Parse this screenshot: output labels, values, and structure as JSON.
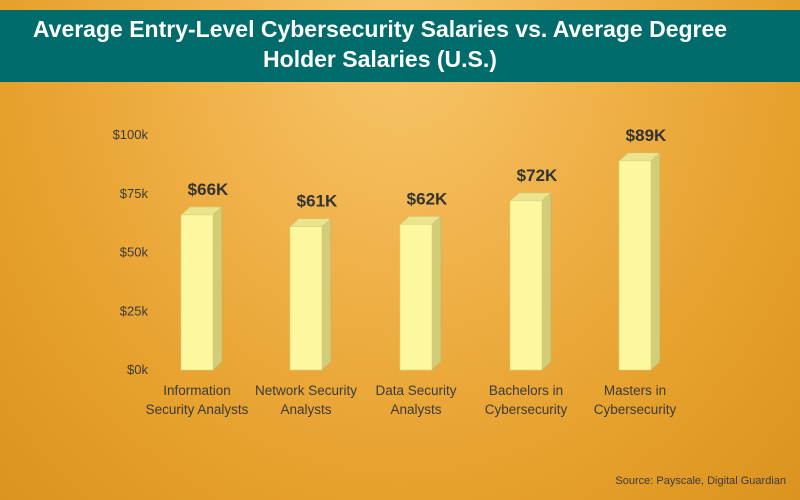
{
  "header": {
    "title": "Average Entry-Level Cybersecurity Salaries vs. Average Degree\nHolder Salaries (U.S.)"
  },
  "footer": {
    "source": "Source: Payscale, Digital Guardian"
  },
  "colors": {
    "title_bar": "#006b6b",
    "bar_front": "#fdf8a0",
    "bar_side": "#d4cd78",
    "bar_top": "#ebe48c",
    "label_text": "#3a3a3a",
    "value_text": "#333333"
  },
  "chart_data": {
    "type": "bar",
    "title": "Average Entry-Level Cybersecurity Salaries vs. Average Degree Holder Salaries (U.S.)",
    "categories": [
      [
        "Information",
        "Security Analysts"
      ],
      [
        "Network Security",
        "Analysts"
      ],
      [
        "Data Security",
        "Analysts"
      ],
      [
        "Bachelors in",
        "Cybersecurity"
      ],
      [
        "Masters in",
        "Cybersecurity"
      ]
    ],
    "values": [
      66,
      61,
      62,
      72,
      89
    ],
    "data_labels": [
      "$66K",
      "$61K",
      "$62K",
      "$72K",
      "$89K"
    ],
    "yticks": [
      0,
      25,
      50,
      75,
      100
    ],
    "ytick_labels": [
      "$0k",
      "$25k",
      "$50k",
      "$75k",
      "$100k"
    ],
    "ylim": [
      0,
      100
    ],
    "grid": false,
    "legend": "none",
    "style": "3d-bar"
  }
}
